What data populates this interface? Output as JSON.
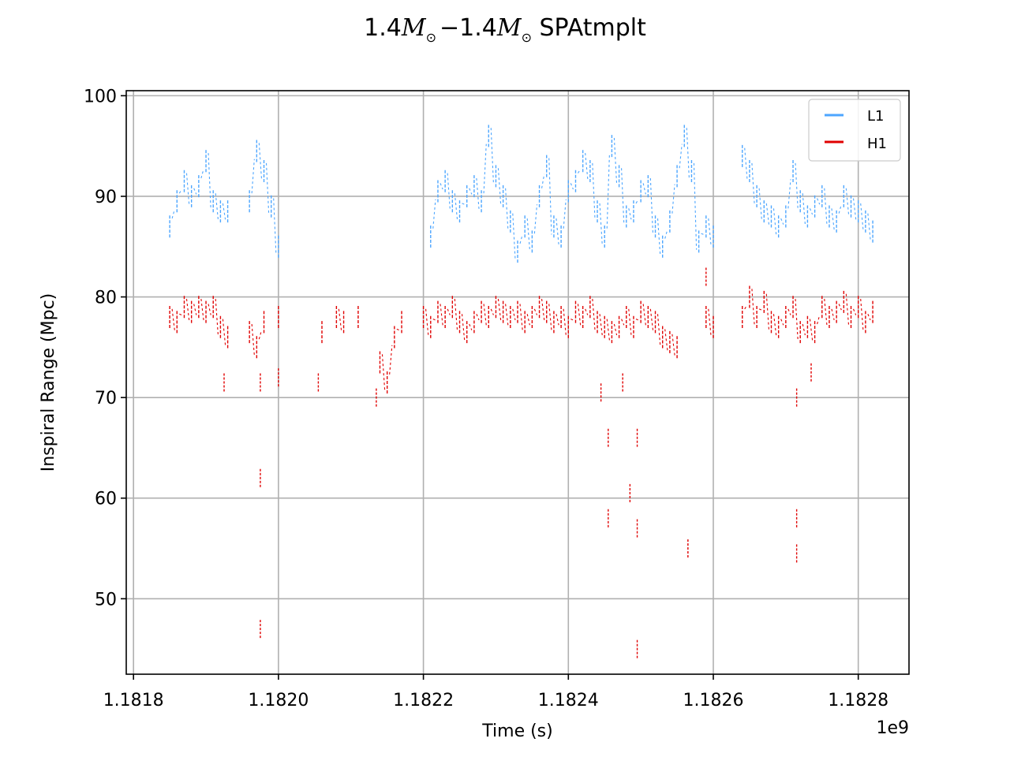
{
  "chart_data": {
    "type": "scatter",
    "title": "1.4M⊙ − 1.4M⊙ SPAtmplt",
    "title_parts": {
      "a": "1.4",
      "b": "M",
      "c": "⊙",
      "d": "−1.4",
      "e": "M",
      "f": "⊙",
      "g": " SPAtmplt"
    },
    "xlabel": "Time (s)",
    "ylabel": "Inspiral Range (Mpc)",
    "x_offset_label": "1e9",
    "x_scale": 1000000000,
    "xlim": [
      1.18179,
      1.18287
    ],
    "ylim": [
      42.5,
      100.5
    ],
    "xticks": [
      1.1818,
      1.182,
      1.1822,
      1.1824,
      1.1826,
      1.1828
    ],
    "xtick_labels": [
      "1.1818",
      "1.1820",
      "1.1822",
      "1.1824",
      "1.1826",
      "1.1828"
    ],
    "yticks": [
      50,
      60,
      70,
      80,
      90,
      100
    ],
    "ytick_labels": [
      "50",
      "60",
      "70",
      "80",
      "90",
      "100"
    ],
    "grid": true,
    "legend_position": "top-right",
    "series": [
      {
        "name": "L1",
        "color": "#4da6ff",
        "points": [
          [
            1.18185,
            87.0
          ],
          [
            1.18186,
            89.5
          ],
          [
            1.18187,
            91.5
          ],
          [
            1.18188,
            90.0
          ],
          [
            1.18189,
            91.0
          ],
          [
            1.1819,
            93.5
          ],
          [
            1.18191,
            89.5
          ],
          [
            1.18192,
            88.5
          ],
          [
            1.18193,
            88.5
          ],
          [
            1.18196,
            89.5
          ],
          [
            1.18197,
            94.5
          ],
          [
            1.18198,
            92.5
          ],
          [
            1.18199,
            89.0
          ],
          [
            1.182,
            85.0
          ],
          [
            1.18221,
            86.0
          ],
          [
            1.18222,
            90.5
          ],
          [
            1.18223,
            91.5
          ],
          [
            1.18224,
            89.5
          ],
          [
            1.18225,
            88.5
          ],
          [
            1.18226,
            90.0
          ],
          [
            1.18227,
            91.0
          ],
          [
            1.18228,
            89.5
          ],
          [
            1.18229,
            96.0
          ],
          [
            1.1823,
            92.0
          ],
          [
            1.18231,
            90.0
          ],
          [
            1.18232,
            87.5
          ],
          [
            1.18233,
            84.5
          ],
          [
            1.18234,
            87.0
          ],
          [
            1.18235,
            85.5
          ],
          [
            1.18236,
            90.0
          ],
          [
            1.18237,
            93.0
          ],
          [
            1.18238,
            87.0
          ],
          [
            1.18239,
            86.0
          ],
          [
            1.1824,
            90.5
          ],
          [
            1.18241,
            91.5
          ],
          [
            1.18242,
            93.5
          ],
          [
            1.18243,
            92.5
          ],
          [
            1.18244,
            88.5
          ],
          [
            1.18245,
            86.0
          ],
          [
            1.18246,
            95.0
          ],
          [
            1.18247,
            92.0
          ],
          [
            1.18248,
            88.0
          ],
          [
            1.18249,
            88.5
          ],
          [
            1.1825,
            90.5
          ],
          [
            1.18251,
            91.0
          ],
          [
            1.18252,
            87.0
          ],
          [
            1.18253,
            85.0
          ],
          [
            1.18254,
            87.5
          ],
          [
            1.18255,
            92.0
          ],
          [
            1.18256,
            96.0
          ],
          [
            1.18257,
            92.5
          ],
          [
            1.18258,
            85.5
          ],
          [
            1.18259,
            87.0
          ],
          [
            1.1826,
            86.0
          ],
          [
            1.18264,
            94.0
          ],
          [
            1.18265,
            92.5
          ],
          [
            1.18266,
            90.0
          ],
          [
            1.18267,
            88.5
          ],
          [
            1.18268,
            88.0
          ],
          [
            1.18269,
            87.0
          ],
          [
            1.1827,
            88.0
          ],
          [
            1.18271,
            92.5
          ],
          [
            1.18272,
            89.5
          ],
          [
            1.18273,
            88.0
          ],
          [
            1.18274,
            89.0
          ],
          [
            1.18275,
            90.0
          ],
          [
            1.18276,
            88.0
          ],
          [
            1.18277,
            87.5
          ],
          [
            1.18278,
            90.0
          ],
          [
            1.18279,
            89.0
          ],
          [
            1.1828,
            88.5
          ],
          [
            1.18281,
            87.5
          ],
          [
            1.18282,
            86.5
          ]
        ]
      },
      {
        "name": "H1",
        "color": "#e00000",
        "points": [
          [
            1.18185,
            78.0
          ],
          [
            1.18186,
            77.5
          ],
          [
            1.18187,
            79.0
          ],
          [
            1.18188,
            78.5
          ],
          [
            1.18189,
            79.0
          ],
          [
            1.1819,
            78.5
          ],
          [
            1.18191,
            79.0
          ],
          [
            1.18192,
            77.0
          ],
          [
            1.18193,
            76.0
          ],
          [
            1.18196,
            76.5
          ],
          [
            1.18197,
            75.0
          ],
          [
            1.18198,
            77.5
          ],
          [
            1.182,
            78.0
          ],
          [
            1.18206,
            76.5
          ],
          [
            1.18208,
            78.0
          ],
          [
            1.18209,
            77.5
          ],
          [
            1.18211,
            78.0
          ],
          [
            1.18214,
            73.5
          ],
          [
            1.18215,
            71.5
          ],
          [
            1.18216,
            76.0
          ],
          [
            1.18217,
            77.5
          ],
          [
            1.1822,
            78.0
          ],
          [
            1.18221,
            77.0
          ],
          [
            1.18222,
            78.5
          ],
          [
            1.18223,
            78.0
          ],
          [
            1.18224,
            79.0
          ],
          [
            1.18225,
            77.5
          ],
          [
            1.18226,
            76.5
          ],
          [
            1.18227,
            77.5
          ],
          [
            1.18228,
            78.5
          ],
          [
            1.18229,
            78.0
          ],
          [
            1.1823,
            79.0
          ],
          [
            1.18231,
            78.5
          ],
          [
            1.18232,
            78.0
          ],
          [
            1.18233,
            78.5
          ],
          [
            1.18234,
            77.5
          ],
          [
            1.18235,
            78.0
          ],
          [
            1.18236,
            79.0
          ],
          [
            1.18237,
            78.5
          ],
          [
            1.18238,
            77.5
          ],
          [
            1.18239,
            78.0
          ],
          [
            1.1824,
            77.0
          ],
          [
            1.18241,
            78.5
          ],
          [
            1.18242,
            78.0
          ],
          [
            1.18243,
            79.0
          ],
          [
            1.18244,
            77.5
          ],
          [
            1.18245,
            77.0
          ],
          [
            1.18246,
            76.5
          ],
          [
            1.18247,
            77.0
          ],
          [
            1.18248,
            78.0
          ],
          [
            1.18249,
            77.0
          ],
          [
            1.1825,
            78.5
          ],
          [
            1.18251,
            78.0
          ],
          [
            1.18252,
            77.5
          ],
          [
            1.18253,
            76.0
          ],
          [
            1.18254,
            75.5
          ],
          [
            1.18255,
            75.0
          ],
          [
            1.18259,
            78.0
          ],
          [
            1.1826,
            77.0
          ],
          [
            1.18264,
            78.0
          ],
          [
            1.18265,
            80.0
          ],
          [
            1.18266,
            78.0
          ],
          [
            1.18267,
            79.5
          ],
          [
            1.18268,
            77.5
          ],
          [
            1.18269,
            77.0
          ],
          [
            1.1827,
            78.0
          ],
          [
            1.18271,
            79.0
          ],
          [
            1.18272,
            76.5
          ],
          [
            1.18273,
            77.0
          ],
          [
            1.18274,
            76.5
          ],
          [
            1.18275,
            79.0
          ],
          [
            1.18276,
            78.0
          ],
          [
            1.18277,
            78.5
          ],
          [
            1.18278,
            79.5
          ],
          [
            1.18279,
            78.0
          ],
          [
            1.1828,
            79.0
          ],
          [
            1.18281,
            77.5
          ],
          [
            1.18282,
            78.5
          ]
        ],
        "outliers": [
          [
            1.181975,
            62.0
          ],
          [
            1.181975,
            47.0
          ],
          [
            1.181975,
            71.5
          ],
          [
            1.181925,
            71.5
          ],
          [
            1.182055,
            71.5
          ],
          [
            1.182135,
            70.0
          ],
          [
            1.182,
            72.0
          ],
          [
            1.182445,
            70.5
          ],
          [
            1.182455,
            66.0
          ],
          [
            1.182475,
            71.5
          ],
          [
            1.182495,
            66.0
          ],
          [
            1.182485,
            60.5
          ],
          [
            1.182495,
            57.0
          ],
          [
            1.182455,
            58.0
          ],
          [
            1.182495,
            45.0
          ],
          [
            1.182565,
            55.0
          ],
          [
            1.18259,
            82.0
          ],
          [
            1.182715,
            58.0
          ],
          [
            1.182715,
            54.5
          ],
          [
            1.182715,
            70.0
          ],
          [
            1.182735,
            72.5
          ]
        ]
      }
    ]
  }
}
